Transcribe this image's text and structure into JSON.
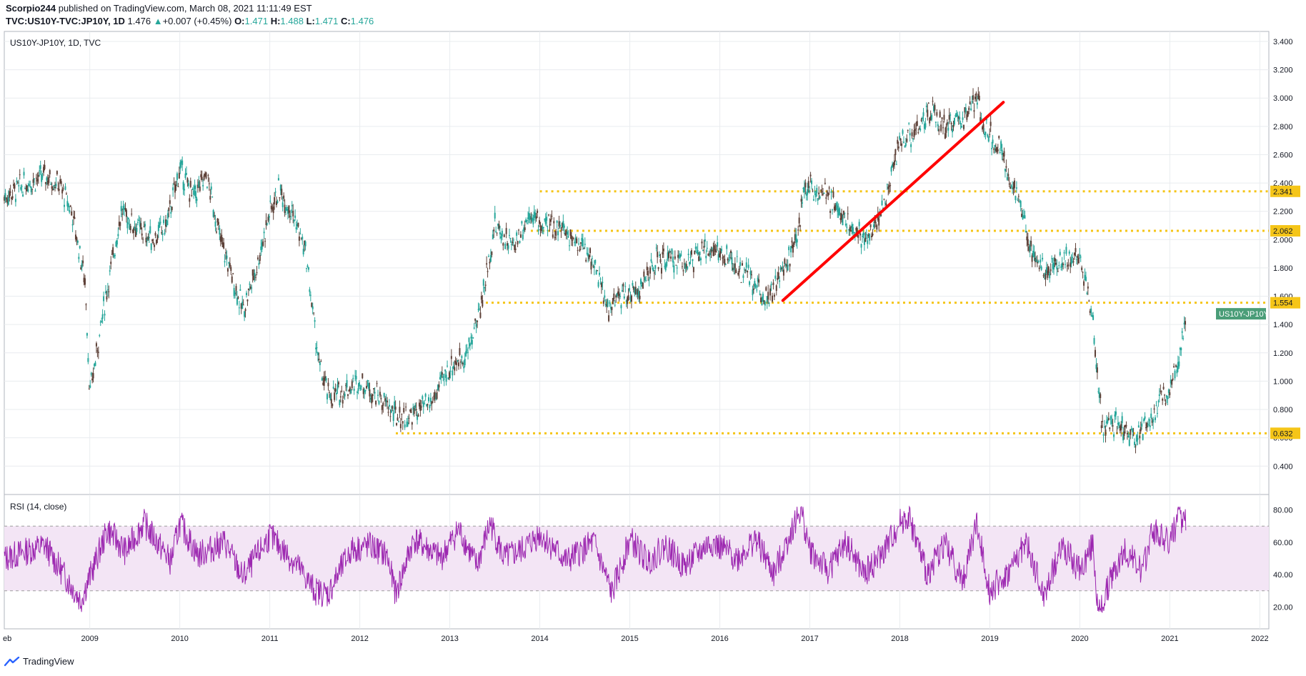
{
  "header": {
    "author": "Scorpio244",
    "published": "published on TradingView.com, March 08, 2021 11:11:49 EST",
    "symbol": "TVC:US10Y-TVC:JP10Y, 1D",
    "last": "1.476",
    "change_arrow": "▲",
    "change": "+0.007 (+0.45%)",
    "o_label": "O:",
    "o_value": "1.471",
    "h_label": "H:",
    "h_value": "1.488",
    "l_label": "L:",
    "l_value": "1.471",
    "c_label": "C:",
    "c_value": "1.476"
  },
  "footer": {
    "brand": "TradingView",
    "logo_icon": "tradingview-logo-icon"
  },
  "colors": {
    "up": "#26a69a",
    "down": "#5d4037",
    "candle_body": "#2e7d32",
    "support": "#f5c518",
    "trend": "#ff0000",
    "rsi": "#9c27b0",
    "rsi_band": "#f3e5f5",
    "grid": "#e9ecef",
    "axis_text": "#131722",
    "badge": "#4a9d78"
  },
  "chart_data": [
    {
      "type": "candlestick",
      "title": "US10Y-JP10Y, 1D, TVC",
      "x_ticks": [
        "eb",
        "2009",
        "2010",
        "2011",
        "2012",
        "2013",
        "2014",
        "2015",
        "2016",
        "2017",
        "2018",
        "2019",
        "2020",
        "2021",
        "2022"
      ],
      "y_ticks": [
        "3.400",
        "3.200",
        "3.000",
        "2.800",
        "2.600",
        "2.400",
        "2.200",
        "2.000",
        "1.800",
        "1.600",
        "1.400",
        "1.200",
        "1.000",
        "0.800",
        "0.600",
        "0.400"
      ],
      "ylim": [
        0.25,
        3.42
      ],
      "xlim": [
        2008.05,
        2022.1
      ],
      "grid": true,
      "series": [
        {
          "name": "US10Y-JP10Y",
          "x": [
            2008.05,
            2008.3,
            2008.5,
            2008.65,
            2008.8,
            2008.95,
            2009.0,
            2009.15,
            2009.35,
            2009.5,
            2009.7,
            2009.85,
            2010.0,
            2010.15,
            2010.3,
            2010.45,
            2010.6,
            2010.7,
            2010.85,
            2011.0,
            2011.1,
            2011.25,
            2011.4,
            2011.55,
            2011.65,
            2011.75,
            2011.85,
            2012.0,
            2012.2,
            2012.4,
            2012.55,
            2012.8,
            2013.0,
            2013.2,
            2013.35,
            2013.5,
            2013.7,
            2013.9,
            2014.0,
            2014.2,
            2014.4,
            2014.6,
            2014.75,
            2014.9,
            2015.1,
            2015.3,
            2015.5,
            2015.7,
            2015.9,
            2016.1,
            2016.3,
            2016.5,
            2016.65,
            2016.85,
            2016.95,
            2017.2,
            2017.45,
            2017.65,
            2017.85,
            2018.0,
            2018.15,
            2018.35,
            2018.5,
            2018.7,
            2018.85,
            2018.95,
            2019.1,
            2019.3,
            2019.45,
            2019.6,
            2019.8,
            2020.0,
            2020.15,
            2020.25,
            2020.4,
            2020.6,
            2020.8,
            2020.95,
            2021.1,
            2021.18
          ],
          "y": [
            2.3,
            2.4,
            2.45,
            2.4,
            2.2,
            1.7,
            0.9,
            1.5,
            2.2,
            2.1,
            2.0,
            2.1,
            2.5,
            2.3,
            2.45,
            2.0,
            1.7,
            1.5,
            1.8,
            2.2,
            2.35,
            2.2,
            1.9,
            1.1,
            0.9,
            0.9,
            0.95,
            1.0,
            0.9,
            0.75,
            0.75,
            0.85,
            1.1,
            1.2,
            1.55,
            2.1,
            1.95,
            2.2,
            2.1,
            2.1,
            2.0,
            1.85,
            1.5,
            1.6,
            1.65,
            1.85,
            1.85,
            1.85,
            1.95,
            1.85,
            1.75,
            1.6,
            1.7,
            2.0,
            2.4,
            2.3,
            2.1,
            2.0,
            2.3,
            2.7,
            2.75,
            2.9,
            2.8,
            2.85,
            3.0,
            2.8,
            2.65,
            2.3,
            1.95,
            1.8,
            1.85,
            1.9,
            1.4,
            0.65,
            0.7,
            0.6,
            0.75,
            0.9,
            1.15,
            1.476
          ]
        }
      ],
      "annotations": {
        "support_levels": [
          {
            "label": "2.341",
            "value": 2.341,
            "from_x": 2014.0
          },
          {
            "label": "2.062",
            "value": 2.062,
            "from_x": 2013.9
          },
          {
            "label": "1.554",
            "value": 1.554,
            "from_x": 2013.4
          },
          {
            "label": "0.632",
            "value": 0.632,
            "from_x": 2012.4
          }
        ],
        "trend_line": {
          "from": [
            2016.7,
            1.57
          ],
          "to": [
            2019.15,
            2.97
          ]
        },
        "last_value_label": "US10Y-JP10Y"
      }
    },
    {
      "type": "line",
      "title": "RSI (14, close)",
      "y_ticks": [
        "80.00",
        "60.00",
        "40.00",
        "20.00"
      ],
      "ylim": [
        10,
        86
      ],
      "band": [
        30,
        70
      ],
      "series": [
        {
          "name": "",
          "x": [
            2008.05,
            2008.5,
            2008.9,
            2009.2,
            2009.4,
            2009.6,
            2009.9,
            2010.0,
            2010.2,
            2010.5,
            2010.7,
            2011.0,
            2011.3,
            2011.5,
            2011.65,
            2011.9,
            2012.1,
            2012.3,
            2012.4,
            2012.6,
            2012.9,
            2013.1,
            2013.3,
            2013.45,
            2013.6,
            2013.8,
            2014.0,
            2014.3,
            2014.6,
            2014.8,
            2015.0,
            2015.2,
            2015.4,
            2015.6,
            2015.9,
            2016.2,
            2016.4,
            2016.6,
            2016.8,
            2016.9,
            2017.0,
            2017.2,
            2017.4,
            2017.6,
            2017.8,
            2018.0,
            2018.1,
            2018.3,
            2018.5,
            2018.7,
            2018.85,
            2019.0,
            2019.2,
            2019.4,
            2019.6,
            2019.8,
            2020.0,
            2020.15,
            2020.2,
            2020.35,
            2020.5,
            2020.7,
            2020.8,
            2021.0,
            2021.1,
            2021.18
          ],
          "y": [
            50,
            58,
            24,
            68,
            54,
            72,
            48,
            72,
            52,
            60,
            38,
            64,
            46,
            30,
            28,
            55,
            58,
            52,
            28,
            62,
            50,
            68,
            45,
            72,
            50,
            55,
            65,
            48,
            60,
            28,
            62,
            48,
            58,
            45,
            60,
            50,
            62,
            40,
            68,
            80,
            55,
            42,
            60,
            40,
            52,
            72,
            76,
            40,
            60,
            35,
            72,
            30,
            40,
            60,
            26,
            58,
            42,
            60,
            14,
            38,
            55,
            42,
            68,
            60,
            75,
            72
          ]
        }
      ]
    }
  ]
}
